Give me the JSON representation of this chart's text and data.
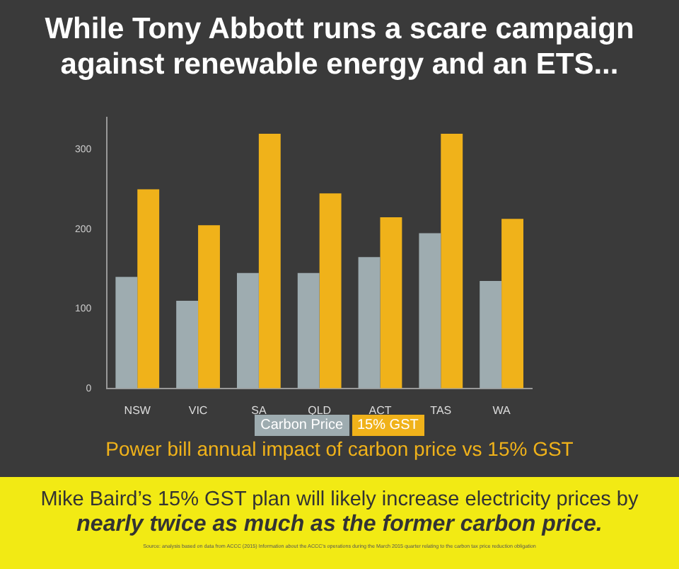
{
  "chart_data": {
    "type": "bar",
    "title": "While Tony Abbott runs a scare campaign against renewable energy and an ETS...",
    "subtitle": "Power bill annual impact of carbon price vs 15% GST",
    "categories": [
      "NSW",
      "VIC",
      "SA",
      "QLD",
      "ACT",
      "TAS",
      "WA"
    ],
    "series": [
      {
        "name": "Carbon Price",
        "color": "#9eacb0",
        "values": [
          140,
          110,
          145,
          145,
          165,
          195,
          135
        ]
      },
      {
        "name": "15% GST",
        "color": "#f0b21a",
        "values": [
          250,
          205,
          320,
          245,
          215,
          320,
          213
        ]
      }
    ],
    "ylim": [
      0,
      340
    ],
    "yticks": [
      0,
      100,
      200,
      300
    ],
    "grid": false,
    "legend": "bottom",
    "annotations": [
      "Mike Baird’s 15% GST plan will likely increase electricity prices by",
      "nearly twice as much as the former carbon price.",
      "Source: analysis based on data from ACCC (2015) Information about the ACCC’s operations during the March 2015 quarter relating to the carbon tax price reduction obligation"
    ]
  }
}
